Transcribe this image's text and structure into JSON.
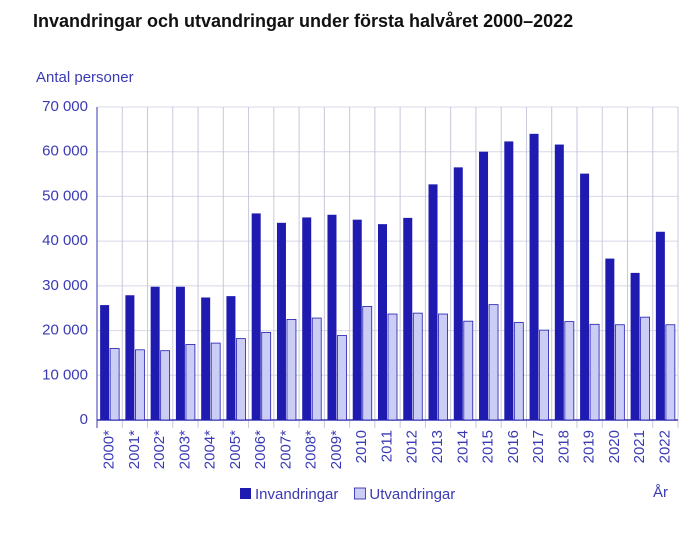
{
  "chart_data": {
    "type": "bar",
    "title": "Invandringar och utvandringar under första halvåret 2000–2022",
    "y_axis_label": "Antal personer",
    "x_axis_label": "År",
    "categories": [
      "2000*",
      "2001*",
      "2002*",
      "2003*",
      "2004*",
      "2005*",
      "2006*",
      "2007*",
      "2008*",
      "2009*",
      "2010",
      "2011",
      "2012",
      "2013",
      "2014",
      "2015",
      "2016",
      "2017",
      "2018",
      "2019",
      "2020",
      "2021",
      "2022"
    ],
    "series": [
      {
        "name": "Invandringar",
        "color": "#1f1ab0",
        "values": [
          25700,
          27900,
          29800,
          29800,
          27400,
          27700,
          46200,
          44100,
          45300,
          45900,
          44800,
          43800,
          45200,
          52700,
          56500,
          60000,
          62300,
          64000,
          61600,
          55100,
          36100,
          32900,
          42100
        ]
      },
      {
        "name": "Utvandringar",
        "color": "#cccdf4",
        "values": [
          16000,
          15700,
          15500,
          16900,
          17200,
          18200,
          19600,
          22500,
          22800,
          18900,
          25400,
          23700,
          23900,
          23700,
          22100,
          25800,
          21800,
          20100,
          22000,
          21400,
          21300,
          23000,
          21300
        ]
      }
    ],
    "ylim": [
      0,
      70000
    ],
    "yticks": [
      0,
      {
        "value": 10000,
        "label": "10 000"
      },
      {
        "value": 20000,
        "label": "20 000"
      },
      {
        "value": 30000,
        "label": "30 000"
      },
      {
        "value": 40000,
        "label": "40 000"
      },
      {
        "value": 50000,
        "label": "50 000"
      },
      {
        "value": 60000,
        "label": "60 000"
      },
      {
        "value": 70000,
        "label": "70 000"
      }
    ],
    "grid": true
  }
}
